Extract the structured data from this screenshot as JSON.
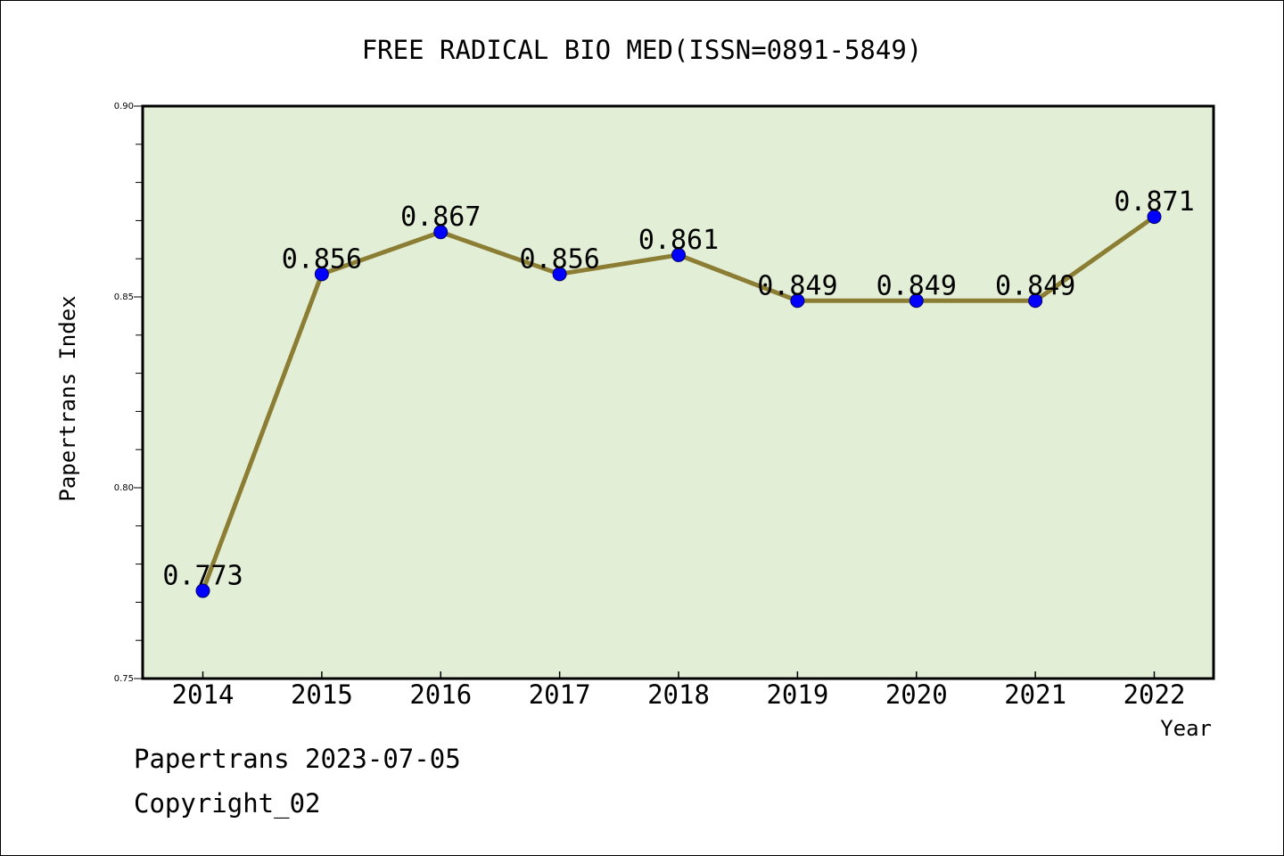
{
  "chart_data": {
    "type": "line",
    "title": "FREE RADICAL BIO MED(ISSN=0891-5849)",
    "xlabel": "Year",
    "ylabel": "Papertrans Index",
    "categories": [
      "2014",
      "2015",
      "2016",
      "2017",
      "2018",
      "2019",
      "2020",
      "2021",
      "2022"
    ],
    "series": [
      {
        "values": [
          0.773,
          0.856,
          0.867,
          0.856,
          0.861,
          0.849,
          0.849,
          0.849,
          0.871
        ],
        "labels": [
          "0.773",
          "0.856",
          "0.867",
          "0.856",
          "0.861",
          "0.849",
          "0.849",
          "0.849",
          "0.871"
        ]
      }
    ],
    "ylim": [
      0.75,
      0.9
    ],
    "yticks": [
      0.75,
      0.8,
      0.85,
      0.9
    ],
    "ytick_labels": [
      "0.75",
      "0.80",
      "0.85",
      "0.90"
    ],
    "grid": false,
    "legend": "none",
    "colors": {
      "plot_background": "#e2efd6",
      "line": "#8b7d33",
      "marker": "#0000ff",
      "axes": "#000000"
    }
  },
  "footer": {
    "line1": "Papertrans 2023-07-05",
    "line2": "Copyright_02"
  }
}
